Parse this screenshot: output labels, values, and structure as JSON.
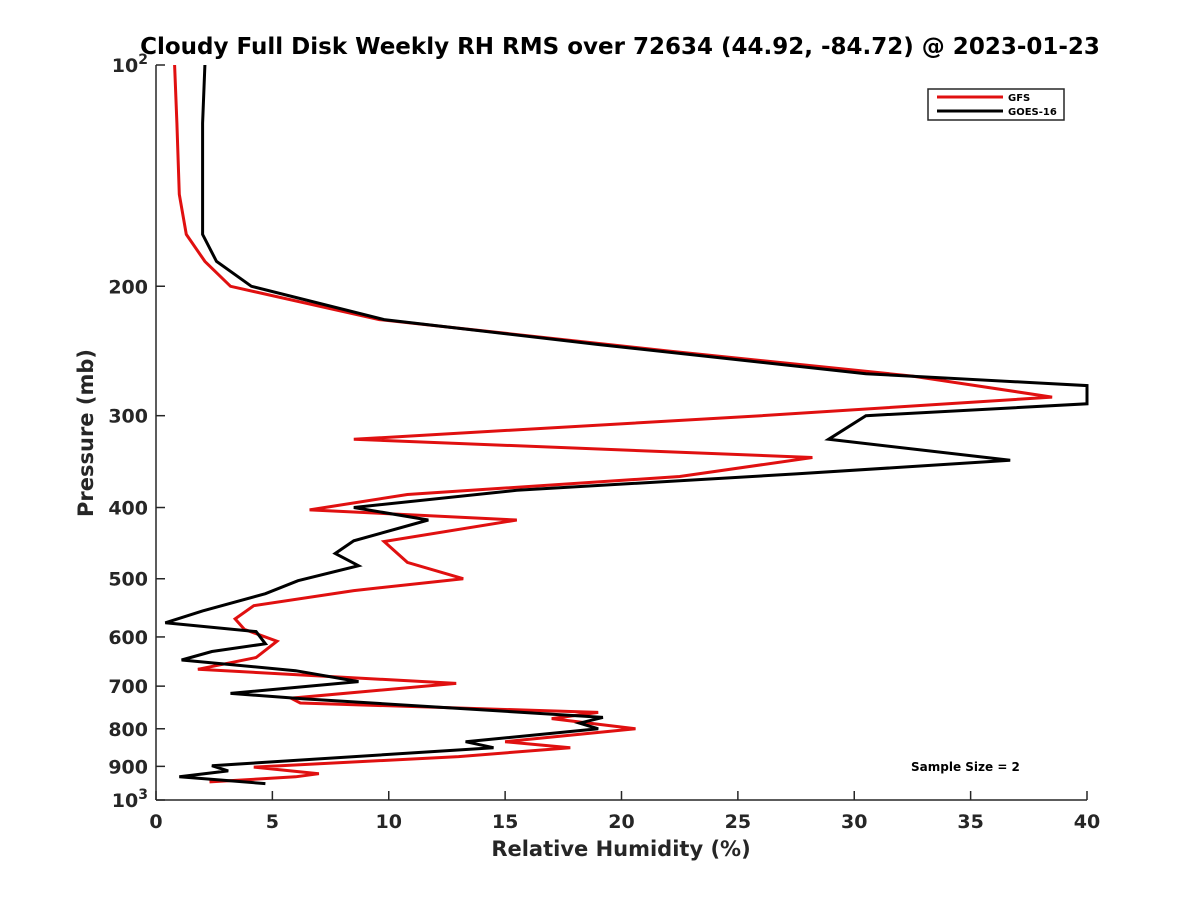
{
  "chart_data": {
    "type": "line",
    "title": "Cloudy Full Disk Weekly RH RMS over 72634 (44.92, -84.72) @ 2023-01-23",
    "xlabel": "Relative Humidity (%)",
    "ylabel": "Pressure (mb)",
    "xlim": [
      0,
      40
    ],
    "ylim": [
      100,
      1000
    ],
    "y_scale": "log",
    "y_reversed": true,
    "x_ticks": [
      "0",
      "5",
      "10",
      "15",
      "20",
      "25",
      "30",
      "35",
      "40"
    ],
    "y_ticks": [
      {
        "value": 100,
        "base": "10",
        "exp": "2"
      },
      {
        "value": 200,
        "label": "200"
      },
      {
        "value": 300,
        "label": "300"
      },
      {
        "value": 400,
        "label": "400"
      },
      {
        "value": 500,
        "label": "500"
      },
      {
        "value": 600,
        "label": "600"
      },
      {
        "value": 700,
        "label": "700"
      },
      {
        "value": 800,
        "label": "800"
      },
      {
        "value": 900,
        "label": "900"
      },
      {
        "value": 1000,
        "base": "10",
        "exp": "3"
      }
    ],
    "grid": false,
    "legend_position": "top-right",
    "annotation": "Sample Size = 2",
    "series": [
      {
        "name": "GFS",
        "color": "#e01010",
        "points": [
          [
            0.8,
            100
          ],
          [
            0.9,
            120
          ],
          [
            1.0,
            150
          ],
          [
            1.3,
            170
          ],
          [
            2.1,
            185
          ],
          [
            3.2,
            200
          ],
          [
            9.6,
            222
          ],
          [
            22.0,
            245
          ],
          [
            32.5,
            265
          ],
          [
            38.5,
            283
          ],
          [
            26.0,
            300
          ],
          [
            8.5,
            323
          ],
          [
            28.2,
            342
          ],
          [
            22.5,
            363
          ],
          [
            10.8,
            384
          ],
          [
            6.6,
            403
          ],
          [
            15.5,
            416
          ],
          [
            9.8,
            445
          ],
          [
            10.8,
            475
          ],
          [
            13.2,
            500
          ],
          [
            8.5,
            519
          ],
          [
            4.2,
            544
          ],
          [
            3.4,
            567
          ],
          [
            3.8,
            586
          ],
          [
            5.2,
            608
          ],
          [
            4.3,
            640
          ],
          [
            1.8,
            664
          ],
          [
            12.9,
            694
          ],
          [
            5.8,
            727
          ],
          [
            6.2,
            738
          ],
          [
            19.0,
            760
          ],
          [
            17.0,
            775
          ],
          [
            20.6,
            800
          ],
          [
            15.0,
            833
          ],
          [
            17.8,
            849
          ],
          [
            13.0,
            873
          ],
          [
            4.2,
            902
          ],
          [
            7.0,
            921
          ],
          [
            6.0,
            930
          ],
          [
            2.3,
            945
          ]
        ]
      },
      {
        "name": "GOES-16",
        "color": "#000000",
        "points": [
          [
            2.1,
            100
          ],
          [
            2.0,
            120
          ],
          [
            2.0,
            150
          ],
          [
            2.0,
            170
          ],
          [
            2.6,
            185
          ],
          [
            4.1,
            200
          ],
          [
            9.8,
            222
          ],
          [
            19.0,
            240
          ],
          [
            30.5,
            263
          ],
          [
            40.0,
            273
          ],
          [
            40.0,
            289
          ],
          [
            30.5,
            300
          ],
          [
            28.9,
            323
          ],
          [
            36.7,
            345
          ],
          [
            27.5,
            360
          ],
          [
            15.5,
            379
          ],
          [
            8.5,
            400
          ],
          [
            11.7,
            416
          ],
          [
            8.5,
            444
          ],
          [
            7.7,
            462
          ],
          [
            8.7,
            480
          ],
          [
            6.1,
            503
          ],
          [
            4.7,
            524
          ],
          [
            2.0,
            553
          ],
          [
            0.4,
            574
          ],
          [
            4.3,
            590
          ],
          [
            4.7,
            613
          ],
          [
            2.4,
            628
          ],
          [
            1.1,
            645
          ],
          [
            6.0,
            667
          ],
          [
            8.7,
            690
          ],
          [
            3.2,
            716
          ],
          [
            6.3,
            728
          ],
          [
            19.2,
            772
          ],
          [
            18.2,
            786
          ],
          [
            19.0,
            800
          ],
          [
            13.3,
            833
          ],
          [
            14.5,
            849
          ],
          [
            2.4,
            898
          ],
          [
            3.1,
            913
          ],
          [
            1.0,
            930
          ],
          [
            4.7,
            950
          ]
        ]
      }
    ]
  }
}
